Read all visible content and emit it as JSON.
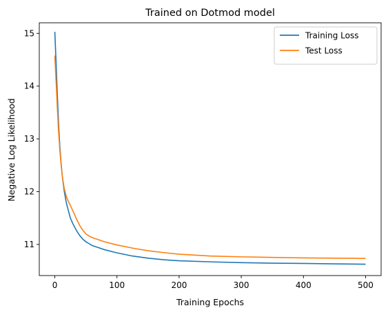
{
  "chart_data": {
    "type": "line",
    "title": "Trained on Dotmod model",
    "xlabel": "Training Epochs",
    "ylabel": "Negative Log Likelihood",
    "xlim": [
      -25,
      525
    ],
    "ylim": [
      10.41,
      15.2
    ],
    "xticks": [
      0,
      100,
      200,
      300,
      400,
      500
    ],
    "yticks": [
      11,
      12,
      13,
      14,
      15
    ],
    "legend_position": "top-right",
    "series": [
      {
        "name": "Training Loss",
        "color": "#1f77b4",
        "x": [
          0,
          2,
          4,
          6,
          8,
          10,
          12,
          15,
          18,
          20,
          25,
          30,
          35,
          40,
          45,
          50,
          60,
          70,
          80,
          100,
          125,
          150,
          175,
          200,
          250,
          300,
          350,
          400,
          450,
          500
        ],
        "y": [
          15.03,
          14.45,
          13.85,
          13.3,
          12.87,
          12.55,
          12.3,
          12.02,
          11.82,
          11.72,
          11.5,
          11.37,
          11.26,
          11.17,
          11.1,
          11.05,
          10.98,
          10.94,
          10.9,
          10.84,
          10.78,
          10.74,
          10.71,
          10.69,
          10.67,
          10.655,
          10.645,
          10.64,
          10.632,
          10.625
        ]
      },
      {
        "name": "Test Loss",
        "color": "#ff7f0e",
        "x": [
          0,
          2,
          4,
          6,
          8,
          10,
          12,
          15,
          18,
          20,
          25,
          30,
          35,
          40,
          45,
          50,
          55,
          60,
          70,
          80,
          100,
          125,
          150,
          175,
          200,
          250,
          300,
          350,
          400,
          450,
          500
        ],
        "y": [
          14.58,
          14.1,
          13.6,
          13.15,
          12.8,
          12.52,
          12.3,
          12.07,
          11.93,
          11.86,
          11.74,
          11.61,
          11.48,
          11.36,
          11.27,
          11.2,
          11.16,
          11.13,
          11.09,
          11.05,
          10.99,
          10.93,
          10.88,
          10.845,
          10.815,
          10.78,
          10.765,
          10.755,
          10.745,
          10.74,
          10.735
        ]
      }
    ]
  }
}
